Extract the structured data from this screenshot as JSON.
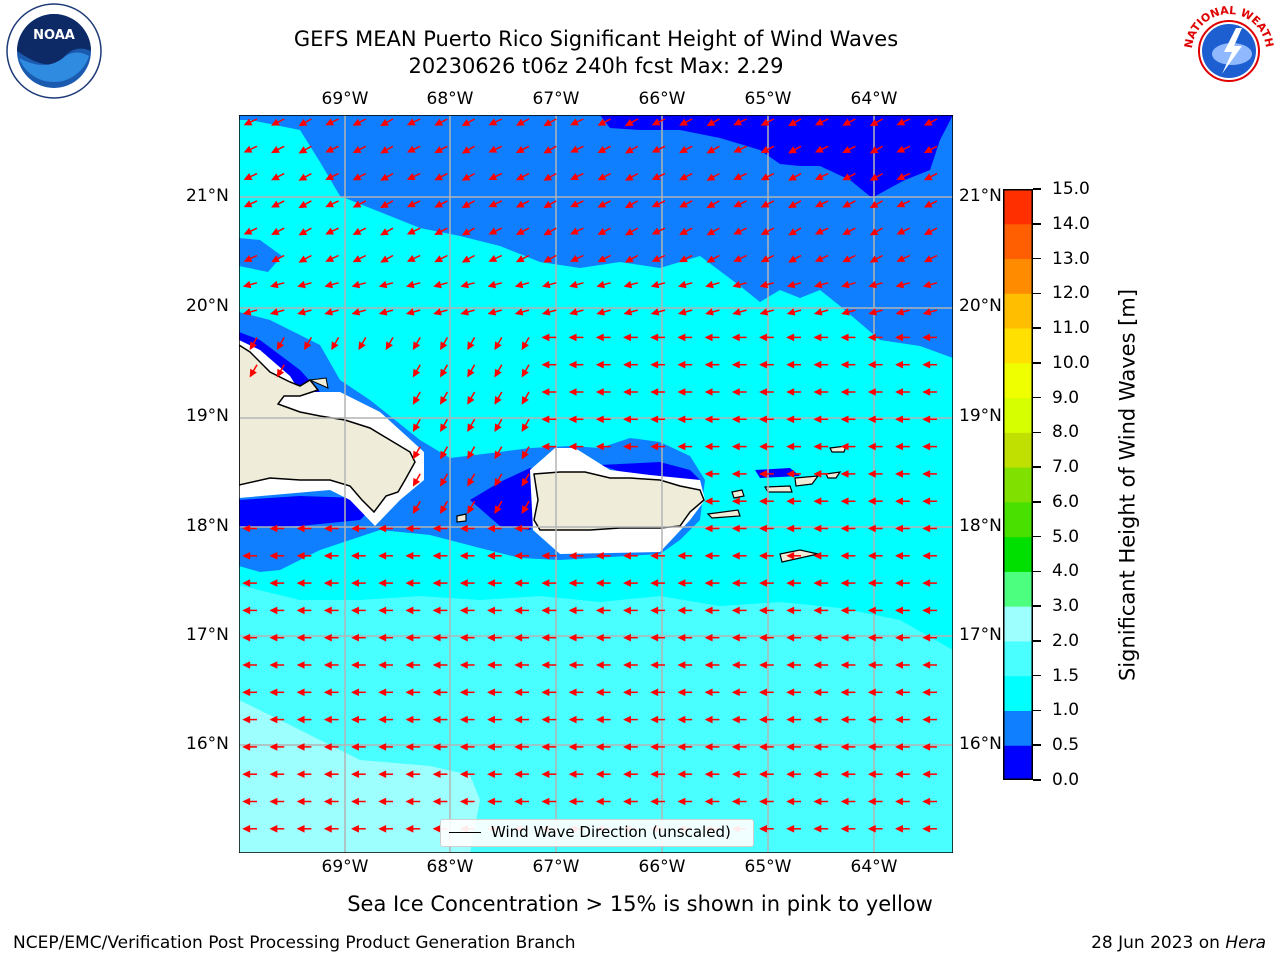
{
  "title": {
    "line1": "GEFS MEAN Puerto Rico Significant Height of Wind Waves",
    "line2": "20230626 t06z 240h fcst   Max: 2.29"
  },
  "map": {
    "lon_labels": [
      "69°W",
      "68°W",
      "67°W",
      "66°W",
      "65°W",
      "64°W"
    ],
    "lat_labels": [
      "21°N",
      "20°N",
      "19°N",
      "18°N",
      "17°N",
      "16°N"
    ],
    "legend": "Wind Wave Direction (unscaled)",
    "arrow_color": "#ff0000"
  },
  "colorbar": {
    "label": "Significant Height of Wind Waves [m]",
    "ticks": [
      "0.0",
      "0.5",
      "1.0",
      "1.5",
      "2.0",
      "3.0",
      "4.0",
      "5.0",
      "6.0",
      "7.0",
      "8.0",
      "9.0",
      "10.0",
      "11.0",
      "12.0",
      "13.0",
      "14.0",
      "15.0"
    ],
    "colors": [
      "#0000ff",
      "#0f7fff",
      "#00ffff",
      "#49ffff",
      "#9effff",
      "#4cff7f",
      "#00e000",
      "#49e000",
      "#80e000",
      "#bfe000",
      "#d6ff00",
      "#f0ff00",
      "#ffe000",
      "#ffbf00",
      "#ff8c00",
      "#ff5f00",
      "#ff2f00",
      "#ff0000"
    ]
  },
  "note": "Sea Ice Concentration > 15% is shown in pink to yellow",
  "footer": {
    "left": "NCEP/EMC/Verification Post Processing Product Generation Branch",
    "right_date": "28 Jun 2023 on ",
    "right_host": "Hera"
  },
  "logos": {
    "left": "NOAA",
    "right": "NATIONAL WEATHER SERVICE"
  }
}
